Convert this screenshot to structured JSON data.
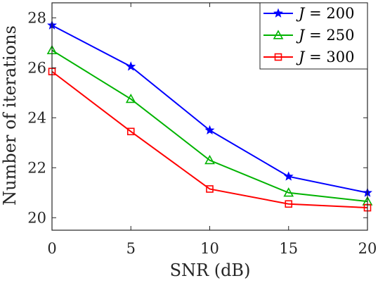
{
  "chart_data": {
    "type": "line",
    "xlabel": "SNR (dB)",
    "ylabel": "Number of iterations",
    "x": [
      0,
      5,
      10,
      15,
      20
    ],
    "xlim": [
      0,
      20
    ],
    "ylim": [
      19.5,
      28.6
    ],
    "xticks": [
      "0",
      "5",
      "10",
      "15",
      "20"
    ],
    "yticks": [
      "20",
      "22",
      "24",
      "26",
      "28"
    ],
    "grid": false,
    "legend_position": "top-right",
    "series": [
      {
        "name": "J = 200",
        "legend_var": "J",
        "legend_rest": " = 200",
        "color": "#0000ff",
        "marker": "star",
        "values": [
          27.7,
          26.05,
          23.5,
          21.65,
          21.0
        ]
      },
      {
        "name": "J = 250",
        "legend_var": "J",
        "legend_rest": " = 250",
        "color": "#00b300",
        "marker": "triangle",
        "values": [
          26.7,
          24.75,
          22.3,
          21.0,
          20.65
        ]
      },
      {
        "name": "J = 300",
        "legend_var": "J",
        "legend_rest": " = 300",
        "color": "#ff0000",
        "marker": "square",
        "values": [
          25.85,
          23.45,
          21.15,
          20.55,
          20.4
        ]
      }
    ]
  }
}
